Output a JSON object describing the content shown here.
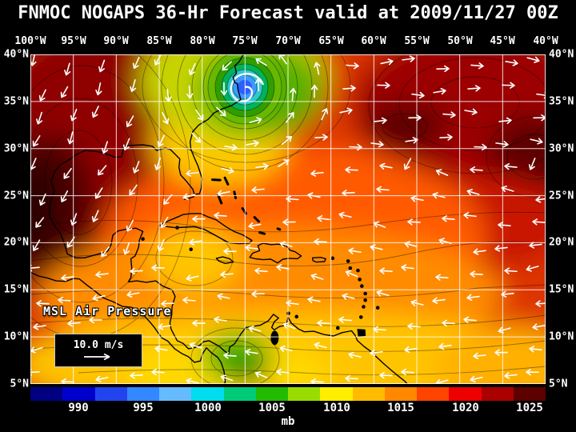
{
  "title": "FNMOC NOGAPS 36-Hr Forecast valid at 2009/11/27 00Z",
  "map": {
    "field_label": "MSL Air Pressure",
    "wind_legend_label": "10.0 m/s",
    "lon_labels": [
      "100°W",
      "95°W",
      "90°W",
      "85°W",
      "80°W",
      "75°W",
      "70°W",
      "65°W",
      "60°W",
      "55°W",
      "50°W",
      "45°W",
      "40°W"
    ],
    "lat_labels": [
      "40°N",
      "35°N",
      "30°N",
      "25°N",
      "20°N",
      "15°N",
      "10°N",
      "5°N"
    ]
  },
  "colorbar": {
    "tick_labels": [
      "990",
      "995",
      "1000",
      "1005",
      "1010",
      "1015",
      "1020",
      "1025"
    ],
    "unit": "mb",
    "colors": [
      "#000080",
      "#0000cc",
      "#2244ee",
      "#3388ff",
      "#66bbff",
      "#00ddee",
      "#00cc77",
      "#22bb00",
      "#99dd00",
      "#ffee00",
      "#ffbb00",
      "#ff8800",
      "#ff4400",
      "#ee0000",
      "#aa0000",
      "#5c0000"
    ]
  },
  "chart_data": {
    "type": "heatmap",
    "title": "FNMOC NOGAPS 36-Hr Forecast valid at 2009/11/27 00Z",
    "field": "MSL Air Pressure",
    "units": "mb",
    "lon_range_deg_west": [
      100,
      40
    ],
    "lat_range_deg_north": [
      5,
      40
    ],
    "grid_interval_deg": 5,
    "colorbar_ticks_mb": [
      990,
      995,
      1000,
      1005,
      1010,
      1015,
      1020,
      1025
    ],
    "wind_vector_reference_ms": 10.0,
    "features": [
      {
        "name": "closed low / cyclone (blue-cyan-green rings, white swirl)",
        "approx_lon_w": 75,
        "approx_lat_n": 36.5,
        "approx_value_mb": 990
      },
      {
        "name": "high pressure dark-red area over Texas / Mexico west edge",
        "approx_lon_w": 98,
        "approx_lat_n": 23,
        "approx_value_mb": 1025
      },
      {
        "name": "high pressure dark-red area northeast Atlantic",
        "approx_lon_w": 50,
        "approx_lat_n": 36,
        "approx_value_mb": 1024
      },
      {
        "name": "lower-pressure yellow/green band along southern edge",
        "approx_lat_n": 6,
        "approx_value_mb": 1007
      }
    ]
  }
}
